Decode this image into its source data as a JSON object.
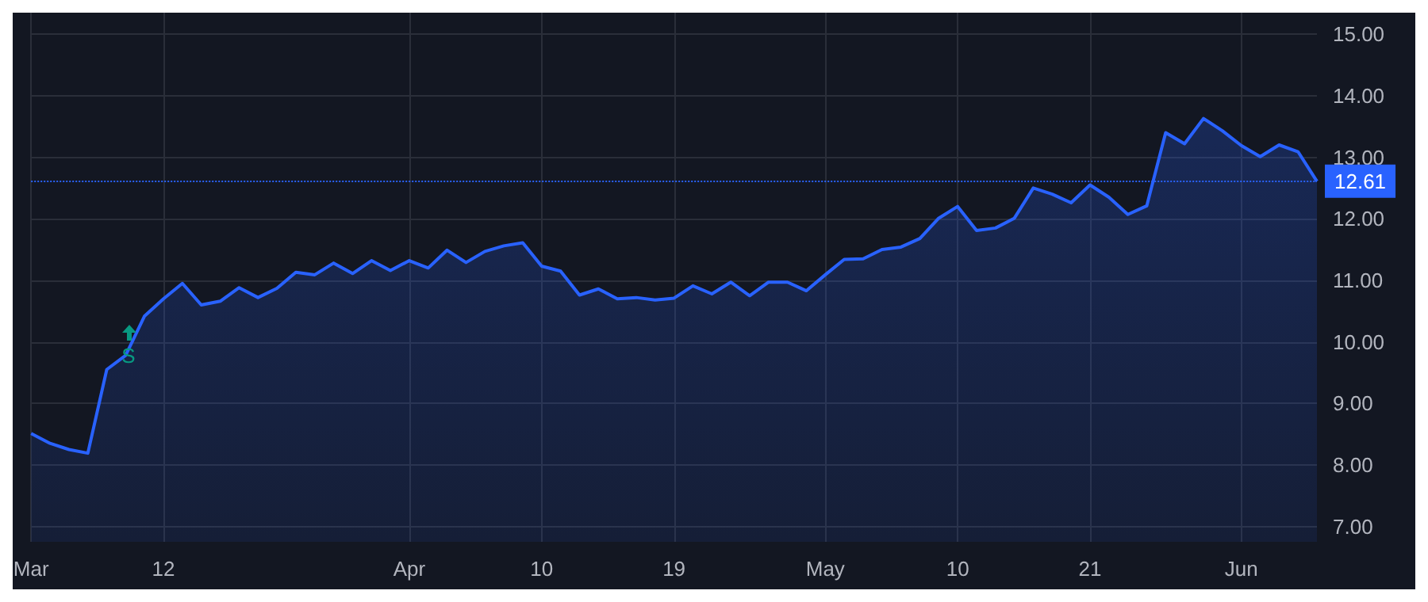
{
  "chart_data": {
    "type": "area",
    "categories": [
      "Mar",
      null,
      null,
      null,
      null,
      null,
      null,
      "12",
      null,
      null,
      null,
      null,
      null,
      null,
      null,
      null,
      null,
      null,
      null,
      null,
      "Apr",
      null,
      null,
      null,
      null,
      null,
      null,
      "10",
      null,
      null,
      null,
      null,
      null,
      null,
      "19",
      null,
      null,
      null,
      null,
      null,
      null,
      null,
      "May",
      null,
      null,
      null,
      null,
      null,
      null,
      "10",
      null,
      null,
      null,
      null,
      null,
      null,
      "21",
      null,
      null,
      null,
      null,
      null,
      null,
      null,
      "Jun",
      null,
      null,
      null,
      null
    ],
    "series": [
      {
        "color": "#2962ff",
        "values": [
          8.51,
          8.35,
          8.25,
          8.19,
          9.55,
          9.78,
          10.42,
          10.7,
          10.95,
          10.6,
          10.66,
          10.88,
          10.72,
          10.87,
          11.13,
          11.09,
          11.28,
          11.11,
          11.32,
          11.16,
          11.32,
          11.2,
          11.49,
          11.29,
          11.47,
          11.56,
          11.61,
          11.23,
          11.15,
          10.76,
          10.86,
          10.7,
          10.72,
          10.68,
          10.71,
          10.91,
          10.78,
          10.97,
          10.75,
          10.97,
          10.97,
          10.83,
          11.09,
          11.34,
          11.35,
          11.5,
          11.54,
          11.68,
          12.01,
          12.2,
          11.81,
          11.85,
          12.01,
          12.5,
          12.4,
          12.26,
          12.55,
          12.35,
          12.07,
          12.21,
          13.4,
          13.22,
          13.63,
          13.43,
          13.19,
          13.01,
          13.2,
          13.09,
          12.61
        ]
      }
    ],
    "ylim": [
      6.75,
      15.35
    ],
    "yticks": [
      {
        "value": 7,
        "label": "7.00"
      },
      {
        "value": 8,
        "label": "8.00"
      },
      {
        "value": 9,
        "label": "9.00"
      },
      {
        "value": 10,
        "label": "10.00"
      },
      {
        "value": 11,
        "label": "11.00"
      },
      {
        "value": 12,
        "label": "12.00"
      },
      {
        "value": 13,
        "label": "13.00"
      },
      {
        "value": 14,
        "label": "14.00"
      },
      {
        "value": 15,
        "label": "15.00"
      }
    ],
    "grid": true,
    "marker": "none",
    "line_style": "solid",
    "ref_lines": [
      {
        "axis": "y",
        "value": 12.61,
        "label": "12.61",
        "color": "#2962ff",
        "line_style": "dotted"
      }
    ],
    "annotations": [
      "S"
    ]
  }
}
